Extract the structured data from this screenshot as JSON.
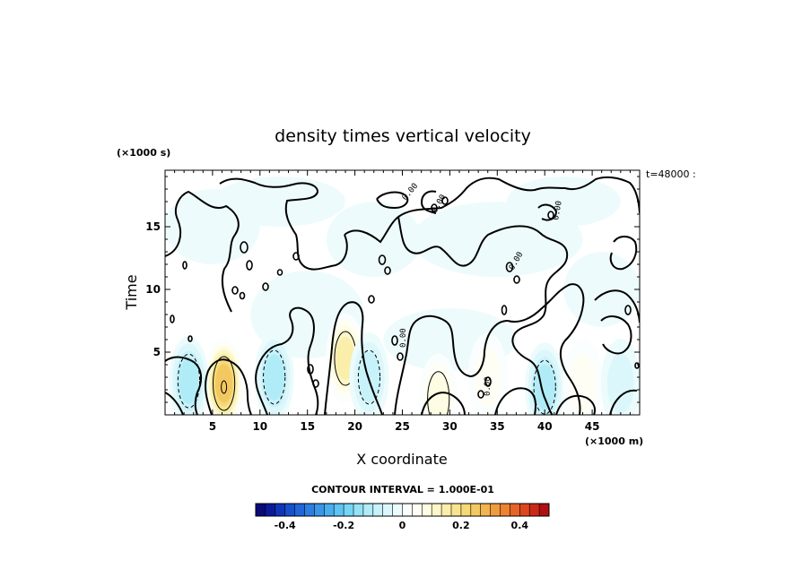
{
  "chart_data": {
    "type": "heatmap",
    "title": "density times vertical velocity",
    "xlabel": "X coordinate",
    "ylabel": "Time",
    "x_units": "(×1000 m)",
    "y_units": "(×1000 s)",
    "xlim": [
      0,
      50
    ],
    "ylim": [
      0,
      19.5
    ],
    "x_ticks": [
      "5",
      "10",
      "15",
      "20",
      "25",
      "30",
      "35",
      "40",
      "45"
    ],
    "y_ticks": [
      "5",
      "10",
      "15"
    ],
    "annotation": "t=48000 :",
    "contour_interval_text": "CONTOUR INTERVAL = 1.000E-01",
    "colorbar": {
      "range": [
        -0.5,
        0.5
      ],
      "tick_labels": [
        "-0.4",
        "-0.2",
        "0",
        "0.2",
        "0.4"
      ],
      "colors": [
        "#0a0a7a",
        "#0c1a9a",
        "#1036b8",
        "#1650cc",
        "#2066d8",
        "#2c7ee0",
        "#3a96e6",
        "#4aaeee",
        "#5ec4f4",
        "#76d6f6",
        "#94e2f6",
        "#b0ecf8",
        "#c8f2fa",
        "#dcf7fb",
        "#ecfbfc",
        "#fafefe",
        "#fefef4",
        "#fefce2",
        "#fcf6c8",
        "#faeeaa",
        "#f8e48e",
        "#f6d876",
        "#f4c860",
        "#f2b44e",
        "#f09c3e",
        "#ec8232",
        "#e66428",
        "#de4620",
        "#cc2a18",
        "#b01010"
      ]
    },
    "contour_labels": [
      "0.00",
      "0.00",
      "0.00",
      "0.00",
      "0.00",
      "0.00"
    ],
    "features": [
      {
        "x": 6.2,
        "y": 2.5,
        "value": 0.25,
        "kind": "max"
      },
      {
        "x": 19.0,
        "y": 4.5,
        "value": 0.17,
        "kind": "max"
      },
      {
        "x": 2.5,
        "y": 2.7,
        "value": -0.12,
        "kind": "min"
      },
      {
        "x": 11.5,
        "y": 3.0,
        "value": -0.14,
        "kind": "min"
      },
      {
        "x": 21.5,
        "y": 3.0,
        "value": -0.1,
        "kind": "min"
      },
      {
        "x": 28.8,
        "y": 1.3,
        "value": 0.1,
        "kind": "max"
      },
      {
        "x": 40.0,
        "y": 2.2,
        "value": -0.12,
        "kind": "min"
      },
      {
        "x": 44.0,
        "y": 2.5,
        "value": 0.08,
        "kind": "max"
      },
      {
        "x": 34.0,
        "y": 3.0,
        "value": 0.06,
        "kind": "max"
      },
      {
        "x": 48.0,
        "y": 2.5,
        "value": -0.07,
        "kind": "min"
      }
    ]
  }
}
